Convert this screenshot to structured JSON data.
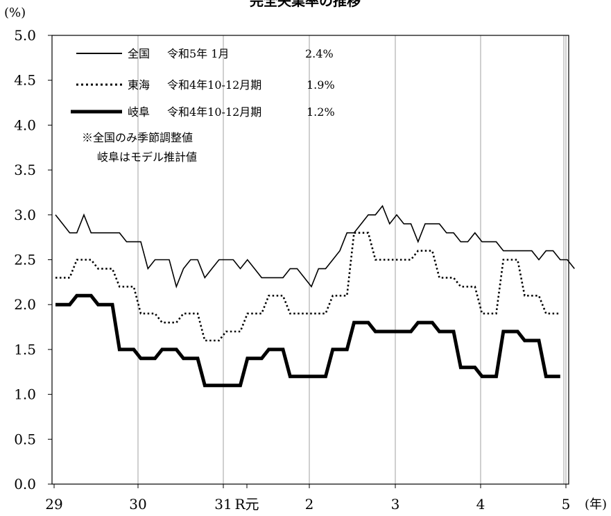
{
  "chart_data": {
    "type": "line",
    "title": "完全失業率の推移",
    "ylabel": "(%)",
    "xlabel": "(年)",
    "ylim": [
      0,
      5
    ],
    "yticks": [
      "0.0",
      "0.5",
      "1.0",
      "1.5",
      "2.0",
      "2.5",
      "3.0",
      "3.5",
      "4.0",
      "4.5",
      "5.0"
    ],
    "xticks": [
      "29",
      "30",
      "31",
      "R元",
      "2",
      "3",
      "4",
      "5"
    ],
    "grid": "vertical",
    "legend": "top-left",
    "note": [
      "※全国のみ季節調整値",
      "岐阜はモデル推計値"
    ],
    "series": [
      {
        "name": "全国",
        "period": "令和5年 1月",
        "latest": "2.4%",
        "style": "solid",
        "color": "#000000",
        "frequency": "monthly",
        "values": [
          3.0,
          2.9,
          2.8,
          2.8,
          3.0,
          2.8,
          2.8,
          2.8,
          2.8,
          2.8,
          2.7,
          2.7,
          2.7,
          2.4,
          2.5,
          2.5,
          2.5,
          2.2,
          2.4,
          2.5,
          2.5,
          2.3,
          2.4,
          2.5,
          2.5,
          2.5,
          2.4,
          2.5,
          2.4,
          2.3,
          2.3,
          2.3,
          2.3,
          2.4,
          2.4,
          2.3,
          2.2,
          2.4,
          2.4,
          2.5,
          2.6,
          2.8,
          2.8,
          2.9,
          3.0,
          3.0,
          3.1,
          2.9,
          3.0,
          2.9,
          2.9,
          2.7,
          2.9,
          2.9,
          2.9,
          2.8,
          2.8,
          2.7,
          2.7,
          2.8,
          2.7,
          2.7,
          2.7,
          2.6,
          2.6,
          2.6,
          2.6,
          2.6,
          2.5,
          2.6,
          2.6,
          2.5,
          2.5,
          2.4
        ]
      },
      {
        "name": "東海",
        "period": "令和4年10-12月期",
        "latest": "1.9%",
        "style": "dotted",
        "color": "#000000",
        "frequency": "quarterly",
        "values": [
          2.3,
          2.5,
          2.4,
          2.2,
          1.9,
          1.8,
          1.9,
          1.6,
          1.7,
          1.9,
          2.1,
          1.9,
          1.9,
          2.1,
          2.8,
          2.5,
          2.5,
          2.6,
          2.3,
          2.2,
          1.9,
          2.5,
          2.1,
          1.9
        ]
      },
      {
        "name": "岐阜",
        "period": "令和4年10-12月期",
        "latest": "1.2%",
        "style": "thick",
        "color": "#000000",
        "frequency": "quarterly",
        "values": [
          2.0,
          2.1,
          2.0,
          1.5,
          1.4,
          1.5,
          1.4,
          1.1,
          1.1,
          1.4,
          1.5,
          1.2,
          1.2,
          1.5,
          1.8,
          1.7,
          1.7,
          1.8,
          1.7,
          1.3,
          1.2,
          1.7,
          1.6,
          1.2
        ]
      }
    ]
  }
}
